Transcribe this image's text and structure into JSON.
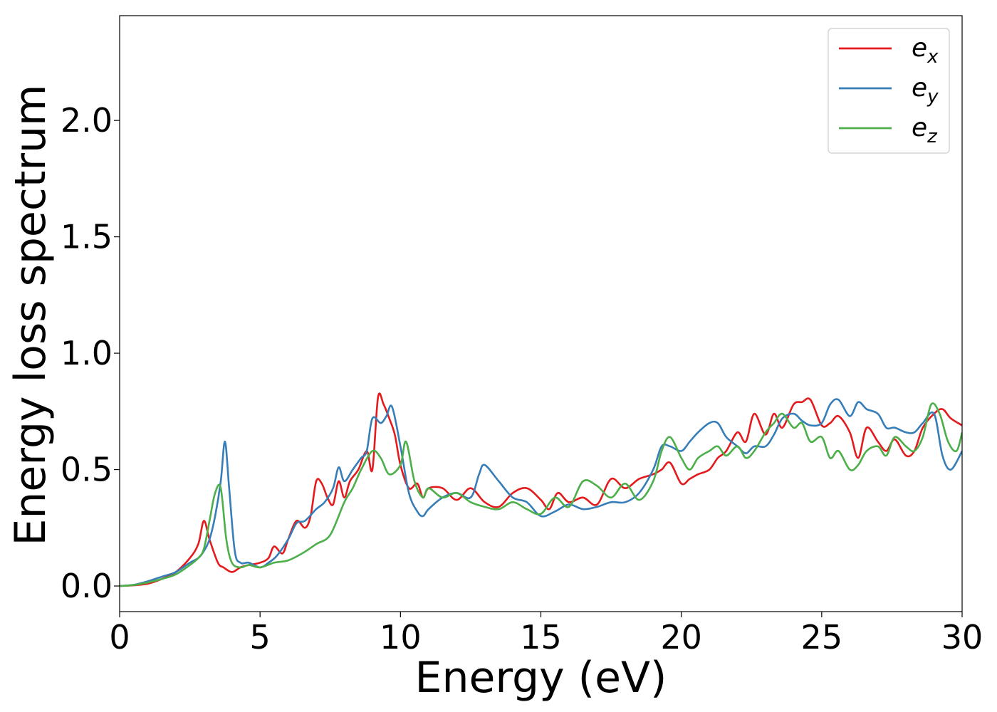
{
  "chart_data": {
    "type": "line",
    "title": "",
    "xlabel": "Energy (eV)",
    "ylabel": "Energy loss spectrum",
    "xlim": [
      0,
      30
    ],
    "ylim": [
      -0.11,
      2.45
    ],
    "xticks": [
      0,
      5,
      10,
      15,
      20,
      25,
      30
    ],
    "yticks": [
      0.0,
      0.5,
      1.0,
      1.5,
      2.0
    ],
    "xtick_labels": [
      "0",
      "5",
      "10",
      "15",
      "20",
      "25",
      "30"
    ],
    "ytick_labels": [
      "0.0",
      "0.5",
      "1.0",
      "1.5",
      "2.0"
    ],
    "grid": false,
    "legend_position": "top-right",
    "series": [
      {
        "name": "e_x",
        "label_main": "e",
        "label_sub": "x",
        "color": "#e41a1c",
        "x": [
          0,
          0.5,
          1.0,
          1.5,
          2.0,
          2.5,
          2.8,
          3.0,
          3.2,
          3.5,
          3.7,
          4.0,
          4.3,
          4.6,
          5.0,
          5.3,
          5.5,
          5.8,
          6.0,
          6.3,
          6.6,
          6.8,
          7.0,
          7.2,
          7.4,
          7.6,
          7.8,
          8.0,
          8.2,
          8.5,
          8.8,
          9.0,
          9.2,
          9.4,
          9.6,
          9.8,
          10.0,
          10.3,
          10.6,
          10.8,
          11.0,
          11.5,
          12.0,
          12.5,
          13.0,
          13.5,
          14.0,
          14.5,
          15.0,
          15.3,
          15.6,
          16.0,
          16.5,
          17.0,
          17.5,
          18.0,
          18.5,
          19.0,
          19.3,
          19.6,
          20.0,
          20.3,
          20.6,
          21.0,
          21.3,
          21.6,
          22.0,
          22.3,
          22.6,
          23.0,
          23.3,
          23.6,
          24.0,
          24.3,
          24.6,
          25.0,
          25.3,
          25.6,
          26.0,
          26.3,
          26.6,
          27.0,
          27.3,
          27.6,
          28.0,
          28.3,
          28.6,
          29.0,
          29.3,
          29.6,
          30.0
        ],
        "y": [
          0,
          0.003,
          0.01,
          0.03,
          0.06,
          0.12,
          0.18,
          0.28,
          0.2,
          0.1,
          0.08,
          0.06,
          0.08,
          0.09,
          0.1,
          0.12,
          0.17,
          0.14,
          0.2,
          0.28,
          0.25,
          0.3,
          0.45,
          0.44,
          0.38,
          0.35,
          0.45,
          0.38,
          0.45,
          0.5,
          0.58,
          0.5,
          0.81,
          0.78,
          0.72,
          0.65,
          0.52,
          0.42,
          0.44,
          0.38,
          0.42,
          0.42,
          0.37,
          0.42,
          0.36,
          0.34,
          0.4,
          0.42,
          0.37,
          0.33,
          0.4,
          0.36,
          0.38,
          0.35,
          0.46,
          0.42,
          0.46,
          0.48,
          0.5,
          0.53,
          0.44,
          0.46,
          0.48,
          0.5,
          0.55,
          0.58,
          0.66,
          0.62,
          0.74,
          0.65,
          0.74,
          0.68,
          0.78,
          0.79,
          0.8,
          0.69,
          0.7,
          0.73,
          0.66,
          0.55,
          0.68,
          0.62,
          0.58,
          0.63,
          0.56,
          0.58,
          0.68,
          0.74,
          0.76,
          0.72,
          0.69
        ]
      },
      {
        "name": "e_y",
        "label_main": "e",
        "label_sub": "y",
        "color": "#377eb8",
        "x": [
          0,
          0.5,
          1.0,
          1.5,
          2.0,
          2.5,
          2.8,
          3.0,
          3.2,
          3.4,
          3.6,
          3.75,
          3.9,
          4.1,
          4.3,
          4.6,
          5.0,
          5.3,
          5.6,
          6.0,
          6.3,
          6.6,
          7.0,
          7.3,
          7.6,
          7.8,
          8.0,
          8.3,
          8.6,
          8.8,
          9.0,
          9.3,
          9.5,
          9.7,
          10.0,
          10.3,
          10.6,
          10.8,
          11.0,
          11.5,
          12.0,
          12.5,
          12.8,
          13.0,
          13.5,
          14.0,
          14.5,
          15.0,
          15.5,
          16.0,
          16.5,
          17.0,
          17.5,
          18.0,
          18.5,
          19.0,
          19.3,
          19.6,
          20.0,
          20.3,
          20.6,
          21.0,
          21.3,
          21.6,
          22.0,
          22.3,
          22.6,
          23.0,
          23.3,
          23.6,
          24.0,
          24.3,
          24.6,
          25.0,
          25.3,
          25.6,
          26.0,
          26.3,
          26.6,
          27.0,
          27.3,
          27.6,
          28.0,
          28.3,
          28.6,
          29.0,
          29.3,
          29.6,
          30.0
        ],
        "y": [
          0,
          0.005,
          0.02,
          0.04,
          0.06,
          0.1,
          0.12,
          0.15,
          0.2,
          0.3,
          0.45,
          0.62,
          0.42,
          0.15,
          0.1,
          0.1,
          0.08,
          0.1,
          0.13,
          0.2,
          0.27,
          0.28,
          0.33,
          0.36,
          0.42,
          0.51,
          0.45,
          0.5,
          0.55,
          0.58,
          0.72,
          0.7,
          0.73,
          0.77,
          0.6,
          0.4,
          0.32,
          0.3,
          0.33,
          0.38,
          0.4,
          0.38,
          0.48,
          0.52,
          0.45,
          0.38,
          0.36,
          0.3,
          0.32,
          0.35,
          0.33,
          0.34,
          0.36,
          0.36,
          0.4,
          0.5,
          0.6,
          0.6,
          0.58,
          0.62,
          0.66,
          0.7,
          0.7,
          0.64,
          0.6,
          0.57,
          0.6,
          0.6,
          0.65,
          0.72,
          0.74,
          0.71,
          0.69,
          0.7,
          0.78,
          0.8,
          0.73,
          0.79,
          0.76,
          0.74,
          0.68,
          0.68,
          0.66,
          0.66,
          0.7,
          0.74,
          0.56,
          0.5,
          0.58
        ]
      },
      {
        "name": "e_z",
        "label_main": "e",
        "label_sub": "z",
        "color": "#4daf4a",
        "x": [
          0,
          0.5,
          1.0,
          1.5,
          2.0,
          2.5,
          2.8,
          3.0,
          3.2,
          3.4,
          3.6,
          3.8,
          4.0,
          4.3,
          4.6,
          5.0,
          5.5,
          6.0,
          6.5,
          7.0,
          7.5,
          8.0,
          8.3,
          8.6,
          9.0,
          9.3,
          9.6,
          10.0,
          10.2,
          10.5,
          10.8,
          11.0,
          11.5,
          12.0,
          12.5,
          13.0,
          13.5,
          14.0,
          14.5,
          15.0,
          15.5,
          16.0,
          16.5,
          17.0,
          17.5,
          18.0,
          18.5,
          19.0,
          19.3,
          19.6,
          20.0,
          20.3,
          20.6,
          21.0,
          21.3,
          21.6,
          22.0,
          22.3,
          22.6,
          23.0,
          23.3,
          23.6,
          24.0,
          24.3,
          24.6,
          25.0,
          25.3,
          25.6,
          26.0,
          26.3,
          26.6,
          27.0,
          27.3,
          27.6,
          28.0,
          28.3,
          28.6,
          28.9,
          29.2,
          29.5,
          29.8,
          30.0
        ],
        "y": [
          0,
          0.004,
          0.015,
          0.03,
          0.05,
          0.09,
          0.12,
          0.16,
          0.28,
          0.4,
          0.42,
          0.2,
          0.1,
          0.08,
          0.09,
          0.08,
          0.1,
          0.11,
          0.14,
          0.18,
          0.22,
          0.36,
          0.42,
          0.5,
          0.58,
          0.55,
          0.48,
          0.52,
          0.62,
          0.45,
          0.38,
          0.42,
          0.38,
          0.4,
          0.36,
          0.34,
          0.33,
          0.36,
          0.33,
          0.31,
          0.38,
          0.34,
          0.45,
          0.43,
          0.38,
          0.44,
          0.37,
          0.45,
          0.58,
          0.64,
          0.55,
          0.5,
          0.55,
          0.58,
          0.6,
          0.56,
          0.6,
          0.55,
          0.58,
          0.66,
          0.7,
          0.74,
          0.68,
          0.7,
          0.62,
          0.64,
          0.55,
          0.58,
          0.5,
          0.52,
          0.58,
          0.6,
          0.56,
          0.64,
          0.6,
          0.58,
          0.64,
          0.78,
          0.74,
          0.62,
          0.58,
          0.66
        ]
      }
    ]
  }
}
